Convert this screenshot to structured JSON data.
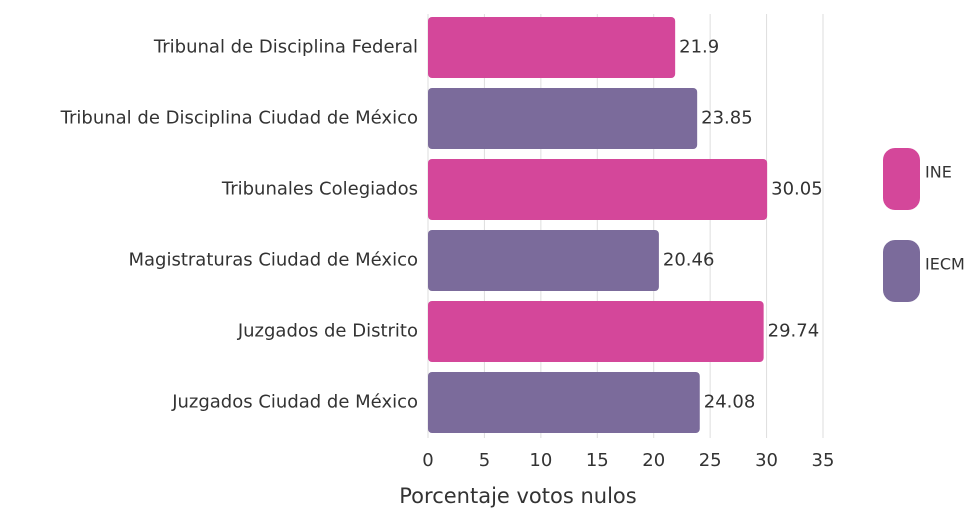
{
  "chart_data": {
    "type": "bar",
    "orientation": "horizontal",
    "x_label": "Porcentaje votos nulos",
    "categories": [
      "Tribunal de Disciplina Federal",
      "Tribunal de Disciplina Ciudad de México",
      "Tribunales Colegiados",
      "Magistraturas Ciudad de México",
      "Juzgados de Distrito",
      "Juzgados Ciudad de México"
    ],
    "series": [
      {
        "name": "INE",
        "color": "#d4479a",
        "values": [
          21.9,
          null,
          30.05,
          null,
          29.74,
          null
        ]
      },
      {
        "name": "IECM",
        "color": "#7b6b9b",
        "values": [
          null,
          23.85,
          null,
          20.46,
          null,
          24.08
        ]
      }
    ],
    "xlim": [
      0,
      35
    ],
    "xticks": [
      0,
      5,
      10,
      15,
      20,
      25,
      30,
      35
    ],
    "grid": true,
    "legend": "right"
  }
}
